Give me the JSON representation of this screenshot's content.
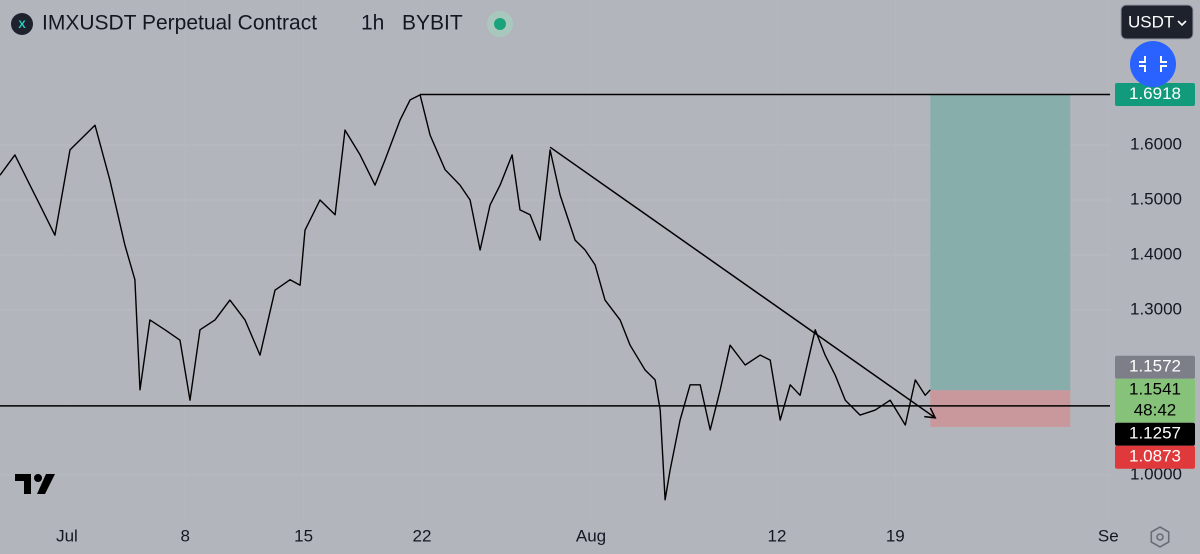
{
  "chart_data": {
    "type": "line",
    "title": "IMXUSDT Perpetual Contract",
    "interval": "1h",
    "exchange": "BYBIT",
    "currency": "USDT",
    "x": [
      -3.96,
      -3.08,
      -2.19,
      -1.6,
      -0.71,
      0.18,
      1.66,
      2.54,
      3.43,
      4.02,
      4.32,
      4.91,
      5.8,
      6.69,
      7.28,
      7.87,
      8.76,
      9.64,
      10.53,
      11.42,
      12.31,
      13.2,
      13.79,
      14.08,
      14.97,
      15.86,
      16.45,
      17.34,
      18.22,
      18.82,
      19.7,
      20.3,
      20.89,
      21.48,
      22.37,
      23.25,
      23.85,
      24.44,
      25.03,
      25.62,
      26.33,
      26.8,
      27.4,
      27.99,
      28.58,
      29.17,
      30.06,
      30.65,
      31.24,
      31.83,
      32.72,
      33.31,
      34.2,
      34.79,
      35.09,
      35.38,
      35.68,
      36.27,
      36.86,
      37.46,
      38.05,
      38.64,
      39.23,
      40.12,
      41.01,
      41.6,
      42.19,
      42.78,
      43.37,
      44.26,
      44.85,
      45.44,
      46.04,
      46.92,
      47.81,
      48.7,
      49.59,
      50.18,
      50.77,
      51.07
    ],
    "series": [
      {
        "color": "#000000",
        "values": [
          1.545,
          1.582,
          1.527,
          1.491,
          1.436,
          1.591,
          1.636,
          1.536,
          1.418,
          1.355,
          1.155,
          1.282,
          1.264,
          1.245,
          1.136,
          1.264,
          1.282,
          1.318,
          1.282,
          1.218,
          1.336,
          1.355,
          1.345,
          1.445,
          1.5,
          1.473,
          1.627,
          1.582,
          1.527,
          1.573,
          1.645,
          1.682,
          1.691,
          1.618,
          1.555,
          1.527,
          1.5,
          1.409,
          1.491,
          1.527,
          1.582,
          1.482,
          1.473,
          1.427,
          1.591,
          1.509,
          1.427,
          1.409,
          1.382,
          1.318,
          1.282,
          1.236,
          1.191,
          1.173,
          1.118,
          0.955,
          1.009,
          1.1,
          1.164,
          1.164,
          1.082,
          1.155,
          1.236,
          1.2,
          1.218,
          1.209,
          1.1,
          1.164,
          1.145,
          1.264,
          1.218,
          1.182,
          1.136,
          1.109,
          1.118,
          1.136,
          1.091,
          1.173,
          1.145,
          1.155
        ]
      }
    ],
    "xlim": [
      -3.96,
      61.7
    ],
    "ylim": [
      0.9182,
      1.8636
    ],
    "xticks": [
      {
        "value": 0,
        "label": "Jul"
      },
      {
        "value": 7,
        "label": "8"
      },
      {
        "value": 14,
        "label": "15"
      },
      {
        "value": 21,
        "label": "22"
      },
      {
        "value": 31,
        "label": "Aug"
      },
      {
        "value": 42,
        "label": "12"
      },
      {
        "value": 49,
        "label": "19"
      },
      {
        "value": 61.6,
        "label": "Se"
      }
    ],
    "yticks": [
      {
        "value": 1.0,
        "label": "1.0000"
      },
      {
        "value": 1.3,
        "label": "1.3000"
      },
      {
        "value": 1.4,
        "label": "1.4000"
      },
      {
        "value": 1.5,
        "label": "1.5000"
      },
      {
        "value": 1.6,
        "label": "1.6000"
      }
    ],
    "grid": true,
    "hlines": [
      {
        "value": 1.6918,
        "from": 20.89
      },
      {
        "value": 1.1257
      }
    ],
    "trendline": {
      "x": [
        28.58,
        51.36
      ],
      "y": [
        1.596,
        1.104
      ]
    },
    "position": {
      "from": 51.07,
      "to": 59.35,
      "entry": 1.1541,
      "target": 1.6918,
      "stop": 1.0873
    },
    "price_labels": [
      {
        "value": 1.6918,
        "color": "#129a7d"
      },
      {
        "value": 1.1572,
        "color": "#7c7f88"
      },
      {
        "value": 1.1541,
        "color": "#86c27a",
        "countdown": "48:42"
      },
      {
        "value": 1.1257,
        "color": "#000000"
      },
      {
        "value": 1.0873,
        "color": "#e0393b"
      }
    ]
  }
}
